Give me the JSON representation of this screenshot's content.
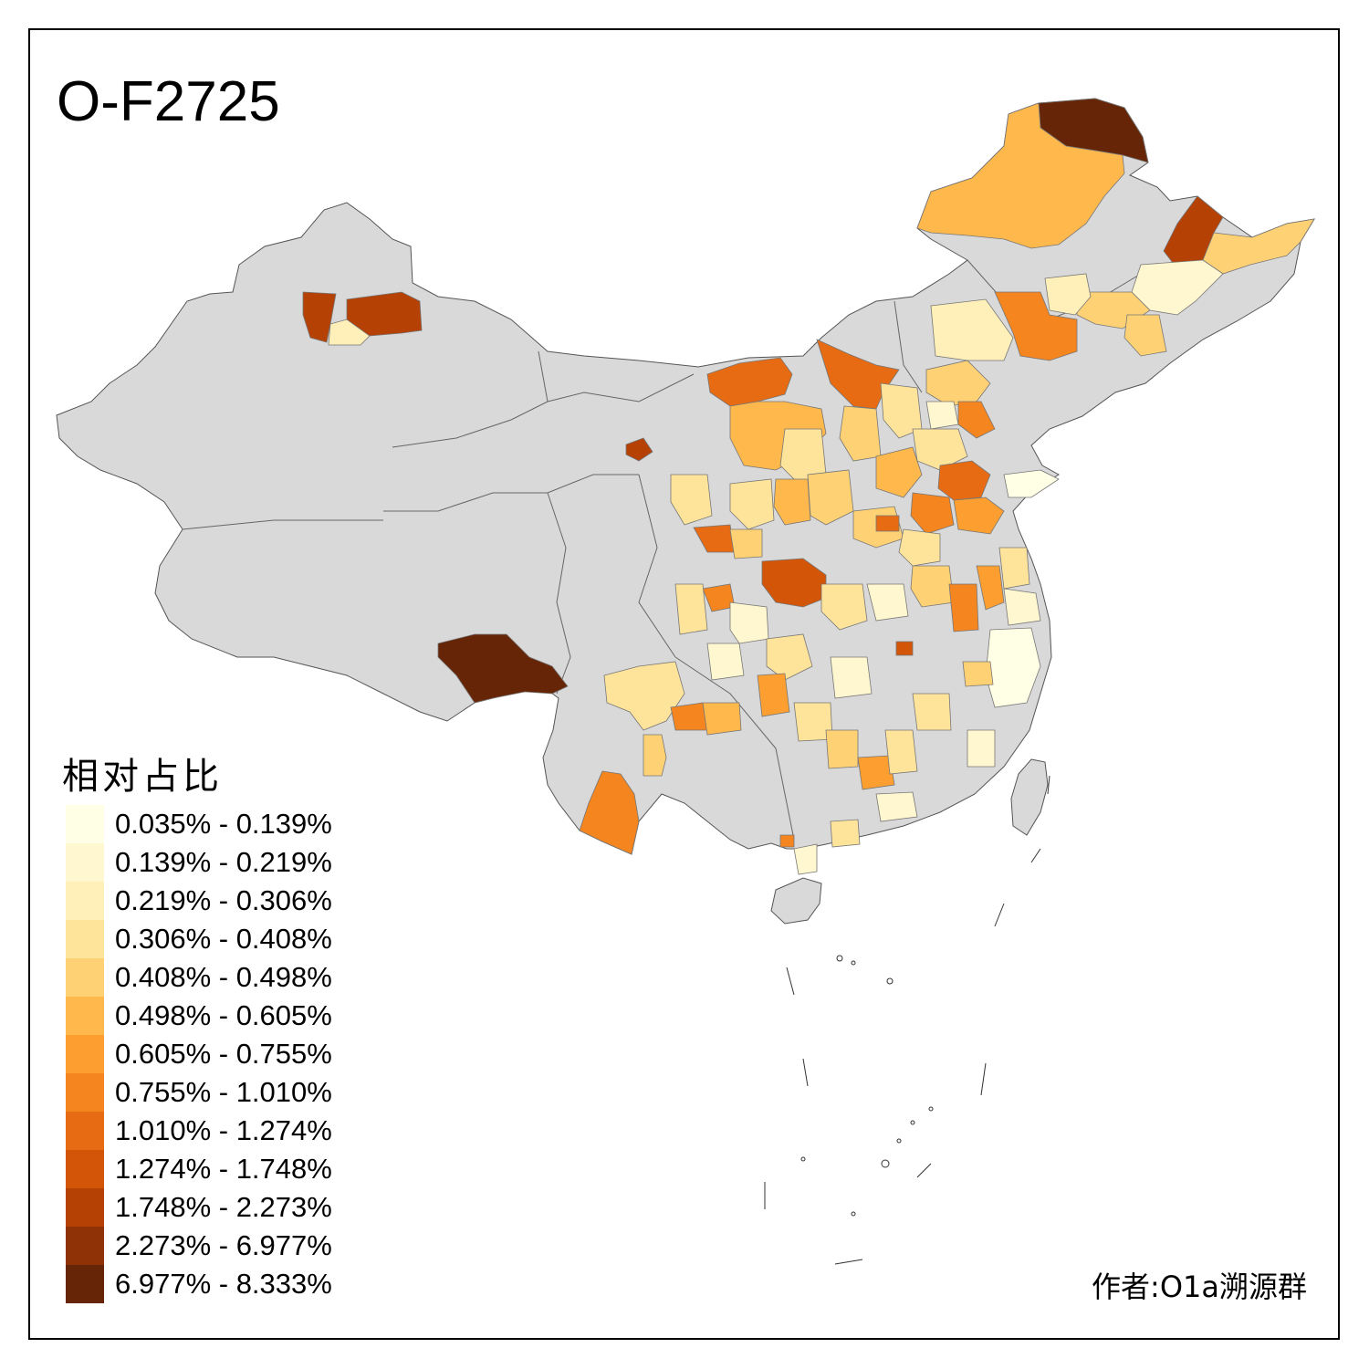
{
  "title": "O-F2725",
  "legend": {
    "title": "相对占比",
    "items": [
      {
        "label": "0.035% - 0.139%",
        "color": "#ffffe5"
      },
      {
        "label": "0.139% - 0.219%",
        "color": "#fff7cf"
      },
      {
        "label": "0.219% - 0.306%",
        "color": "#ffefb8"
      },
      {
        "label": "0.306% - 0.408%",
        "color": "#fee39b"
      },
      {
        "label": "0.408% - 0.498%",
        "color": "#fed174"
      },
      {
        "label": "0.498% - 0.605%",
        "color": "#feb84c"
      },
      {
        "label": "0.605% - 0.755%",
        "color": "#fc9f30"
      },
      {
        "label": "0.755% - 1.010%",
        "color": "#f4851f"
      },
      {
        "label": "1.010% - 1.274%",
        "color": "#e66b12"
      },
      {
        "label": "1.274% - 1.748%",
        "color": "#d35508"
      },
      {
        "label": "1.748% - 2.273%",
        "color": "#b54104"
      },
      {
        "label": "2.273% - 6.977%",
        "color": "#8f3205"
      },
      {
        "label": "6.977% - 8.333%",
        "color": "#662506"
      }
    ]
  },
  "author": "作者:O1a溯源群",
  "colors": {
    "no_data": "#d9d9d9",
    "border": "#555555"
  }
}
